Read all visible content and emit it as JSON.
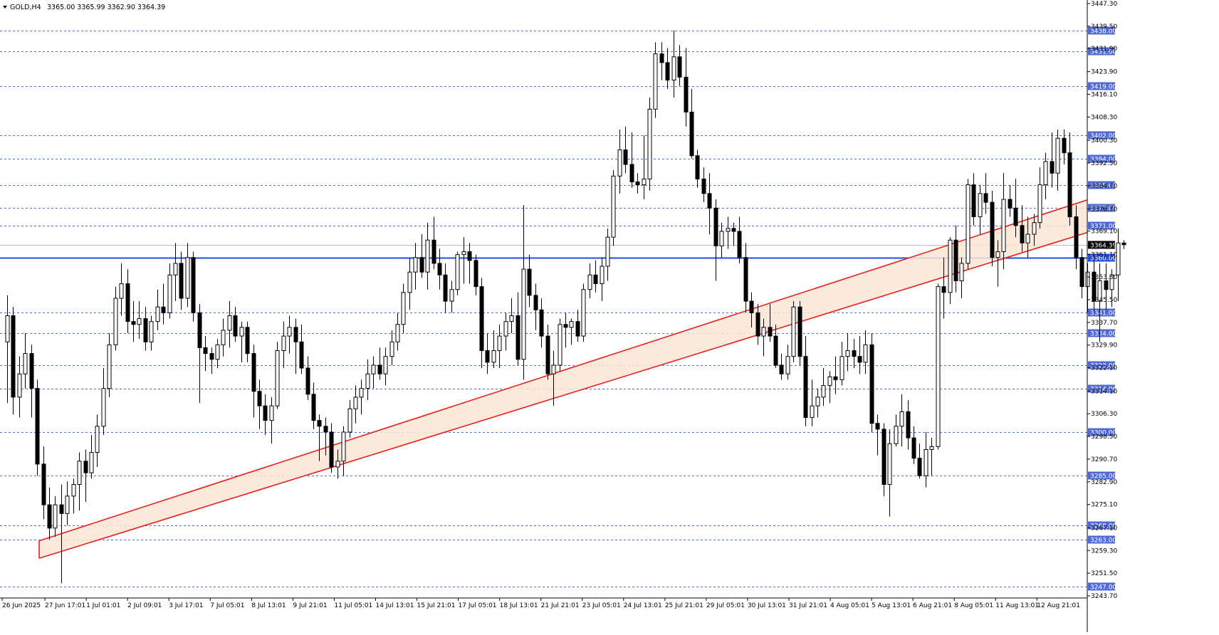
{
  "header": {
    "symbol": "GOLD,H4",
    "ohlc": "3365.00 3365.99 3362.90 3364.39"
  },
  "chart_data": {
    "type": "candlestick",
    "symbol": "GOLD",
    "timeframe": "H4",
    "ylim": [
      3243.7,
      3447.3
    ],
    "grid": false,
    "y_ticks": [
      "3447.30",
      "3439.50",
      "3431.90",
      "3423.90",
      "3416.10",
      "3408.30",
      "3400.30",
      "3392.50",
      "3384.70",
      "3376.70",
      "3369.10",
      "3361.10",
      "3353.30",
      "3345.50",
      "3337.70",
      "3329.90",
      "3322.10",
      "3314.10",
      "3306.30",
      "3298.50",
      "3290.70",
      "3282.90",
      "3275.10",
      "3267.10",
      "3259.30",
      "3251.50",
      "3243.70"
    ],
    "x_ticks": [
      "26 Jun 2025",
      "27 Jun 17:01",
      "1 Jul 01:01",
      "2 Jul 09:01",
      "3 Jul 17:01",
      "7 Jul 05:01",
      "8 Jul 13:01",
      "9 Jul 21:01",
      "11 Jul 05:01",
      "14 Jul 13:01",
      "15 Jul 21:01",
      "17 Jul 05:01",
      "18 Jul 13:01",
      "21 Jul 21:01",
      "23 Jul 05:01",
      "24 Jul 13:01",
      "25 Jul 21:01",
      "29 Jul 05:01",
      "30 Jul 13:01",
      "31 Jul 21:01",
      "4 Aug 05:01",
      "5 Aug 13:01",
      "6 Aug 21:01",
      "8 Aug 05:01",
      "11 Aug 13:01",
      "12 Aug 21:01"
    ],
    "horizontal_levels": [
      "3438.00",
      "3431.00",
      "3419.00",
      "3402.00",
      "3394.00",
      "3385.00",
      "3377.00",
      "3371.00",
      "3341.00",
      "3334.00",
      "3323.00",
      "3314.96",
      "3300.00",
      "3285.00",
      "3268.00",
      "3263.00",
      "3247.00"
    ],
    "key_level": {
      "label": "3360.00",
      "value": 3360.0,
      "color": "#1f4fe0"
    },
    "current_price": {
      "label": "3364.39",
      "value": 3364.39
    },
    "channel": {
      "color": "#e8201c",
      "fill": "#fae6d6",
      "upper": [
        {
          "bar": 0,
          "price": 3262.6
        },
        {
          "bar": 177,
          "price": 3379.8
        }
      ],
      "lower": [
        {
          "bar": 0,
          "price": 3256.6
        },
        {
          "bar": 177,
          "price": 3368.6
        }
      ]
    },
    "candles": [
      [
        3331.0,
        3347.0,
        3310.0,
        3340.0
      ],
      [
        3340.0,
        3343.0,
        3306.0,
        3312.0
      ],
      [
        3312.0,
        3326.0,
        3305.0,
        3320.0
      ],
      [
        3320.0,
        3334.0,
        3315.0,
        3327.0
      ],
      [
        3327.0,
        3330.0,
        3305.0,
        3315.0
      ],
      [
        3315.0,
        3318.0,
        3285.0,
        3289.0
      ],
      [
        3289.0,
        3295.0,
        3270.0,
        3275.0
      ],
      [
        3275.0,
        3281.0,
        3263.0,
        3267.0
      ],
      [
        3267.0,
        3278.0,
        3264.0,
        3275.0
      ],
      [
        3275.0,
        3282.0,
        3248.0,
        3272.0
      ],
      [
        3272.0,
        3283.0,
        3268.0,
        3278.0
      ],
      [
        3278.0,
        3284.0,
        3272.0,
        3282.0
      ],
      [
        3282.0,
        3293.0,
        3273.0,
        3290.0
      ],
      [
        3290.0,
        3294.0,
        3276.0,
        3286.0
      ],
      [
        3286.0,
        3299.0,
        3284.0,
        3293.0
      ],
      [
        3293.0,
        3306.0,
        3288.0,
        3302.0
      ],
      [
        3302.0,
        3322.0,
        3299.0,
        3315.0
      ],
      [
        3315.0,
        3334.0,
        3312.0,
        3330.0
      ],
      [
        3330.0,
        3350.0,
        3328.0,
        3346.0
      ],
      [
        3346.0,
        3358.0,
        3340.0,
        3351.0
      ],
      [
        3351.0,
        3356.0,
        3334.0,
        3338.0
      ],
      [
        3338.0,
        3345.0,
        3331.0,
        3337.0
      ],
      [
        3337.0,
        3345.0,
        3332.0,
        3339.0
      ],
      [
        3339.0,
        3343.0,
        3328.0,
        3331.0
      ],
      [
        3331.0,
        3340.0,
        3328.0,
        3338.0
      ],
      [
        3338.0,
        3349.0,
        3335.0,
        3343.0
      ],
      [
        3343.0,
        3351.0,
        3337.0,
        3341.0
      ],
      [
        3341.0,
        3358.0,
        3339.0,
        3354.0
      ],
      [
        3354.0,
        3365.0,
        3345.0,
        3358.0
      ],
      [
        3358.0,
        3362.0,
        3342.0,
        3346.0
      ],
      [
        3346.0,
        3365.0,
        3343.0,
        3360.0
      ],
      [
        3360.0,
        3362.0,
        3338.0,
        3341.0
      ],
      [
        3341.0,
        3344.0,
        3310.0,
        3329.0
      ],
      [
        3329.0,
        3333.0,
        3321.0,
        3327.0
      ],
      [
        3327.0,
        3329.0,
        3320.0,
        3325.0
      ],
      [
        3325.0,
        3332.0,
        3322.0,
        3330.0
      ],
      [
        3330.0,
        3339.0,
        3326.0,
        3335.0
      ],
      [
        3335.0,
        3345.0,
        3329.0,
        3340.0
      ],
      [
        3340.0,
        3343.0,
        3331.0,
        3333.0
      ],
      [
        3333.0,
        3338.0,
        3324.0,
        3336.0
      ],
      [
        3336.0,
        3338.0,
        3324.0,
        3327.0
      ],
      [
        3327.0,
        3330.0,
        3305.0,
        3314.0
      ],
      [
        3314.0,
        3318.0,
        3301.0,
        3309.0
      ],
      [
        3309.0,
        3313.0,
        3299.0,
        3304.0
      ],
      [
        3304.0,
        3312.0,
        3296.0,
        3309.0
      ],
      [
        3309.0,
        3331.0,
        3308.0,
        3328.0
      ],
      [
        3328.0,
        3338.0,
        3322.0,
        3333.0
      ],
      [
        3333.0,
        3340.0,
        3327.0,
        3336.0
      ],
      [
        3336.0,
        3339.0,
        3320.0,
        3331.0
      ],
      [
        3331.0,
        3337.0,
        3320.0,
        3322.0
      ],
      [
        3322.0,
        3326.0,
        3311.0,
        3313.0
      ],
      [
        3313.0,
        3317.0,
        3301.0,
        3304.0
      ],
      [
        3304.0,
        3306.0,
        3290.0,
        3302.0
      ],
      [
        3302.0,
        3305.0,
        3292.0,
        3300.0
      ],
      [
        3300.0,
        3303.0,
        3286.0,
        3288.0
      ],
      [
        3288.0,
        3294.0,
        3284.0,
        3290.0
      ],
      [
        3290.0,
        3302.0,
        3285.0,
        3300.0
      ],
      [
        3300.0,
        3311.0,
        3298.0,
        3308.0
      ],
      [
        3308.0,
        3316.0,
        3303.0,
        3312.0
      ],
      [
        3312.0,
        3318.0,
        3306.0,
        3315.0
      ],
      [
        3315.0,
        3325.0,
        3311.0,
        3320.0
      ],
      [
        3320.0,
        3326.0,
        3315.0,
        3323.0
      ],
      [
        3323.0,
        3329.0,
        3318.0,
        3320.0
      ],
      [
        3320.0,
        3329.0,
        3316.0,
        3326.0
      ],
      [
        3326.0,
        3335.0,
        3323.0,
        3331.0
      ],
      [
        3331.0,
        3341.0,
        3328.0,
        3337.0
      ],
      [
        3337.0,
        3351.0,
        3334.0,
        3348.0
      ],
      [
        3348.0,
        3360.0,
        3342.0,
        3355.0
      ],
      [
        3355.0,
        3365.0,
        3349.0,
        3360.0
      ],
      [
        3360.0,
        3368.0,
        3353.0,
        3355.0
      ],
      [
        3355.0,
        3372.0,
        3349.0,
        3366.0
      ],
      [
        3366.0,
        3374.0,
        3356.0,
        3358.0
      ],
      [
        3358.0,
        3363.0,
        3349.0,
        3354.0
      ],
      [
        3354.0,
        3358.0,
        3341.0,
        3345.0
      ],
      [
        3345.0,
        3352.0,
        3341.0,
        3349.0
      ],
      [
        3349.0,
        3362.0,
        3347.0,
        3361.0
      ],
      [
        3361.0,
        3367.0,
        3351.0,
        3362.0
      ],
      [
        3362.0,
        3365.0,
        3351.0,
        3359.0
      ],
      [
        3359.0,
        3361.0,
        3347.0,
        3350.0
      ],
      [
        3350.0,
        3353.0,
        3322.0,
        3328.0
      ],
      [
        3328.0,
        3334.0,
        3320.0,
        3324.0
      ],
      [
        3324.0,
        3335.0,
        3322.0,
        3328.0
      ],
      [
        3328.0,
        3337.0,
        3322.0,
        3333.0
      ],
      [
        3333.0,
        3341.0,
        3328.0,
        3338.0
      ],
      [
        3338.0,
        3346.0,
        3334.0,
        3340.0
      ],
      [
        3340.0,
        3348.0,
        3323.0,
        3325.0
      ],
      [
        3325.0,
        3378.0,
        3318.0,
        3356.0
      ],
      [
        3356.0,
        3361.0,
        3343.0,
        3347.0
      ],
      [
        3347.0,
        3351.0,
        3335.0,
        3342.0
      ],
      [
        3342.0,
        3346.0,
        3329.0,
        3333.0
      ],
      [
        3333.0,
        3337.0,
        3318.0,
        3320.0
      ],
      [
        3320.0,
        3328.0,
        3309.0,
        3323.0
      ],
      [
        3323.0,
        3339.0,
        3321.0,
        3337.0
      ],
      [
        3337.0,
        3341.0,
        3329.0,
        3336.0
      ],
      [
        3336.0,
        3339.0,
        3330.0,
        3338.0
      ],
      [
        3338.0,
        3342.0,
        3331.0,
        3333.0
      ],
      [
        3333.0,
        3351.0,
        3331.0,
        3349.0
      ],
      [
        3349.0,
        3358.0,
        3346.0,
        3354.0
      ],
      [
        3354.0,
        3359.0,
        3348.0,
        3351.0
      ],
      [
        3351.0,
        3360.0,
        3345.0,
        3357.0
      ],
      [
        3357.0,
        3370.0,
        3352.0,
        3367.0
      ],
      [
        3367.0,
        3390.0,
        3364.0,
        3388.0
      ],
      [
        3388.0,
        3404.0,
        3382.0,
        3397.0
      ],
      [
        3397.0,
        3405.0,
        3389.0,
        3392.0
      ],
      [
        3392.0,
        3403.0,
        3384.0,
        3386.0
      ],
      [
        3386.0,
        3389.0,
        3382.0,
        3385.0
      ],
      [
        3385.0,
        3402.0,
        3380.0,
        3387.0
      ],
      [
        3387.0,
        3415.0,
        3383.0,
        3411.0
      ],
      [
        3411.0,
        3434.0,
        3408.0,
        3430.0
      ],
      [
        3430.0,
        3434.0,
        3421.0,
        3427.0
      ],
      [
        3427.0,
        3432.0,
        3418.0,
        3421.0
      ],
      [
        3421.0,
        3438.0,
        3415.0,
        3429.0
      ],
      [
        3429.0,
        3433.0,
        3419.0,
        3422.0
      ],
      [
        3422.0,
        3432.0,
        3405.0,
        3410.0
      ],
      [
        3410.0,
        3418.0,
        3394.0,
        3395.0
      ],
      [
        3395.0,
        3397.0,
        3384.0,
        3387.0
      ],
      [
        3387.0,
        3391.0,
        3379.0,
        3382.0
      ],
      [
        3382.0,
        3389.0,
        3368.0,
        3377.0
      ],
      [
        3377.0,
        3380.0,
        3352.0,
        3364.0
      ],
      [
        3364.0,
        3372.0,
        3360.0,
        3369.0
      ],
      [
        3369.0,
        3374.0,
        3363.0,
        3370.0
      ],
      [
        3370.0,
        3372.0,
        3364.0,
        3369.0
      ],
      [
        3369.0,
        3374.0,
        3358.0,
        3360.0
      ],
      [
        3360.0,
        3365.0,
        3341.0,
        3345.0
      ],
      [
        3345.0,
        3348.0,
        3336.0,
        3341.0
      ],
      [
        3341.0,
        3344.0,
        3330.0,
        3333.0
      ],
      [
        3333.0,
        3339.0,
        3326.0,
        3336.0
      ],
      [
        3336.0,
        3344.0,
        3331.0,
        3333.0
      ],
      [
        3333.0,
        3337.0,
        3322.0,
        3323.0
      ],
      [
        3323.0,
        3327.0,
        3318.0,
        3320.0
      ],
      [
        3320.0,
        3330.0,
        3318.0,
        3326.0
      ],
      [
        3326.0,
        3345.0,
        3324.0,
        3343.0
      ],
      [
        3343.0,
        3345.0,
        3323.0,
        3326.0
      ],
      [
        3326.0,
        3333.0,
        3302.0,
        3305.0
      ],
      [
        3305.0,
        3318.0,
        3302.0,
        3309.0
      ],
      [
        3309.0,
        3315.0,
        3305.0,
        3312.0
      ],
      [
        3312.0,
        3322.0,
        3309.0,
        3316.0
      ],
      [
        3316.0,
        3321.0,
        3310.0,
        3319.0
      ],
      [
        3319.0,
        3326.0,
        3313.0,
        3318.0
      ],
      [
        3318.0,
        3331.0,
        3316.0,
        3326.0
      ],
      [
        3326.0,
        3334.0,
        3321.0,
        3328.0
      ],
      [
        3328.0,
        3332.0,
        3322.0,
        3326.0
      ],
      [
        3326.0,
        3333.0,
        3320.0,
        3324.0
      ],
      [
        3324.0,
        3335.0,
        3320.0,
        3330.0
      ],
      [
        3330.0,
        3334.0,
        3300.0,
        3303.0
      ],
      [
        3303.0,
        3306.0,
        3292.0,
        3301.0
      ],
      [
        3301.0,
        3303.0,
        3278.0,
        3282.0
      ],
      [
        3282.0,
        3301.0,
        3271.0,
        3296.0
      ],
      [
        3296.0,
        3306.0,
        3295.0,
        3302.0
      ],
      [
        3302.0,
        3313.0,
        3295.0,
        3307.0
      ],
      [
        3307.0,
        3311.0,
        3294.0,
        3298.0
      ],
      [
        3298.0,
        3302.0,
        3289.0,
        3291.0
      ],
      [
        3291.0,
        3296.0,
        3284.0,
        3285.0
      ],
      [
        3285.0,
        3300.0,
        3281.0,
        3294.0
      ],
      [
        3294.0,
        3298.0,
        3285.0,
        3295.0
      ],
      [
        3295.0,
        3351.0,
        3294.0,
        3350.0
      ],
      [
        3350.0,
        3360.0,
        3339.0,
        3348.0
      ],
      [
        3348.0,
        3367.0,
        3344.0,
        3366.0
      ],
      [
        3366.0,
        3371.0,
        3348.0,
        3352.0
      ],
      [
        3352.0,
        3360.0,
        3346.0,
        3358.0
      ],
      [
        3358.0,
        3387.0,
        3356.0,
        3385.0
      ],
      [
        3385.0,
        3389.0,
        3371.0,
        3374.0
      ],
      [
        3374.0,
        3385.0,
        3368.0,
        3382.0
      ],
      [
        3382.0,
        3389.0,
        3375.0,
        3379.0
      ],
      [
        3379.0,
        3383.0,
        3357.0,
        3360.0
      ],
      [
        3360.0,
        3366.0,
        3350.0,
        3362.0
      ],
      [
        3362.0,
        3389.0,
        3356.0,
        3380.0
      ],
      [
        3380.0,
        3385.0,
        3374.0,
        3377.0
      ],
      [
        3377.0,
        3387.0,
        3367.0,
        3371.0
      ],
      [
        3371.0,
        3378.0,
        3362.0,
        3365.0
      ],
      [
        3365.0,
        3374.0,
        3360.0,
        3368.0
      ],
      [
        3368.0,
        3375.0,
        3364.0,
        3372.0
      ],
      [
        3372.0,
        3391.0,
        3370.0,
        3385.0
      ],
      [
        3385.0,
        3396.0,
        3380.0,
        3393.0
      ],
      [
        3393.0,
        3403.0,
        3384.0,
        3389.0
      ],
      [
        3389.0,
        3404.0,
        3383.0,
        3401.0
      ],
      [
        3401.0,
        3404.0,
        3392.0,
        3396.0
      ],
      [
        3396.0,
        3403.0,
        3371.0,
        3374.0
      ],
      [
        3374.0,
        3378.0,
        3356.0,
        3360.0
      ],
      [
        3360.0,
        3363.0,
        3346.0,
        3350.0
      ],
      [
        3350.0,
        3358.0,
        3341.0,
        3355.0
      ],
      [
        3355.0,
        3361.0,
        3341.0,
        3345.0
      ],
      [
        3345.0,
        3358.0,
        3331.0,
        3352.0
      ],
      [
        3352.0,
        3358.0,
        3342.0,
        3349.0
      ],
      [
        3349.0,
        3356.0,
        3343.0,
        3354.0
      ],
      [
        3354.0,
        3370.0,
        3345.0,
        3365.0
      ],
      [
        3365.0,
        3365.99,
        3362.9,
        3364.39
      ]
    ]
  }
}
